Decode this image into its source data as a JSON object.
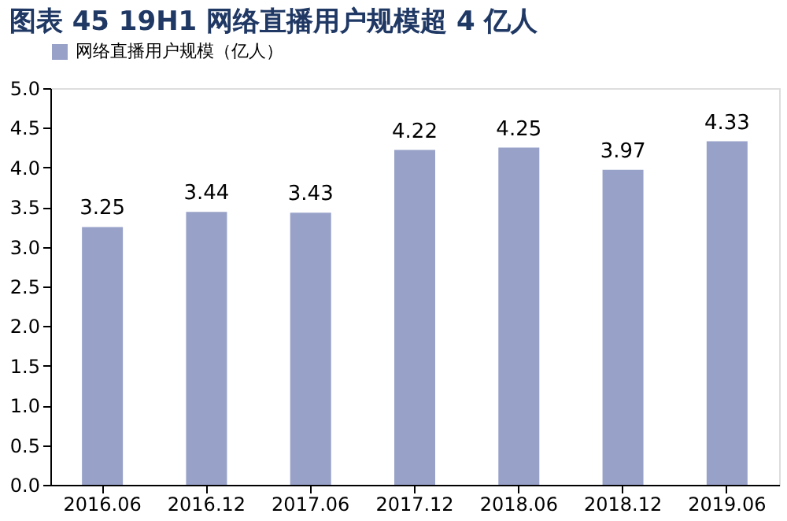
{
  "chart_data": {
    "type": "bar",
    "title": "图表 45   19H1 网络直播用户规模超 4 亿人",
    "categories": [
      "2016.06",
      "2016.12",
      "2017.06",
      "2017.12",
      "2018.06",
      "2018.12",
      "2019.06"
    ],
    "series": [
      {
        "name": "网络直播用户规模（亿人）",
        "color": "#98a2c9",
        "values": [
          3.25,
          3.44,
          3.43,
          4.22,
          4.25,
          3.97,
          4.33
        ]
      }
    ],
    "ylim": [
      0,
      5
    ],
    "yticks": [
      {
        "value": 0,
        "label": "0.0"
      },
      {
        "value": 0.5,
        "label": "0.5"
      },
      {
        "value": 1,
        "label": "1.0"
      },
      {
        "value": 1.5,
        "label": "1.5"
      },
      {
        "value": 2,
        "label": "2.0"
      },
      {
        "value": 2.5,
        "label": "2.5"
      },
      {
        "value": 3,
        "label": "3.0"
      },
      {
        "value": 3.5,
        "label": "3.5"
      },
      {
        "value": 4,
        "label": "4.0"
      },
      {
        "value": 4.5,
        "label": "4.5"
      },
      {
        "value": 5,
        "label": "5.0"
      }
    ],
    "data_labels": true,
    "legend": "top",
    "grid": false
  }
}
